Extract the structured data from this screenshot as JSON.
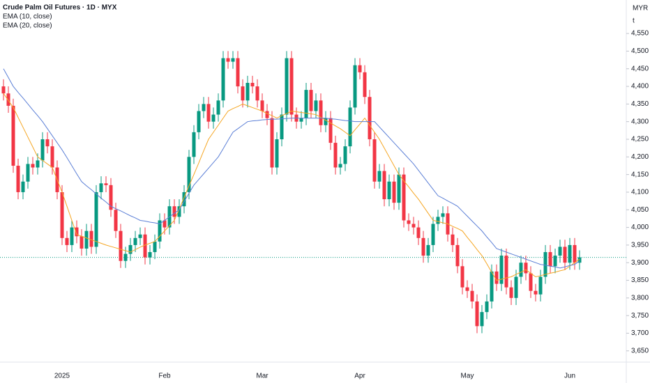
{
  "chart_data": {
    "type": "candlestick",
    "title": "Crude Palm Oil Futures · 1D · MYX",
    "currency": "MYR",
    "unit": "t",
    "up_color": "#089981",
    "down_color": "#f23645",
    "categories": [
      null,
      null,
      null,
      null,
      null,
      null,
      null,
      null,
      null,
      null,
      null,
      null,
      "2025",
      null,
      null,
      null,
      null,
      null,
      null,
      null,
      null,
      null,
      null,
      null,
      null,
      null,
      null,
      null,
      null,
      null,
      null,
      null,
      null,
      "Feb",
      null,
      null,
      null,
      null,
      null,
      null,
      null,
      null,
      null,
      null,
      null,
      null,
      null,
      null,
      null,
      null,
      null,
      null,
      null,
      "Mar",
      null,
      null,
      null,
      null,
      null,
      null,
      null,
      null,
      null,
      null,
      null,
      null,
      null,
      null,
      null,
      null,
      null,
      null,
      null,
      "Apr",
      null,
      null,
      null,
      null,
      null,
      null,
      null,
      null,
      null,
      null,
      null,
      null,
      null,
      null,
      null,
      null,
      null,
      null,
      null,
      null,
      null,
      "May",
      null,
      null,
      null,
      null,
      null,
      null,
      null,
      null,
      null,
      null,
      null,
      null,
      null,
      null,
      null,
      null,
      null,
      null,
      null,
      null,
      "Jun",
      null,
      null
    ],
    "open": [
      4400,
      4380,
      4345,
      4175,
      4100,
      4130,
      4180,
      4170,
      4190,
      4250,
      4230,
      4170,
      4100,
      3970,
      3950,
      4000,
      3975,
      3940,
      3990,
      3945,
      4100,
      4125,
      4120,
      4050,
      3990,
      3905,
      3925,
      3950,
      3970,
      3980,
      3915,
      3930,
      3960,
      4020,
      4000,
      4060,
      4030,
      4060,
      4100,
      4200,
      4270,
      4330,
      4350,
      4300,
      4320,
      4360,
      4480,
      4470,
      4480,
      4400,
      4360,
      4410,
      4400,
      4360,
      4330,
      4310,
      4170,
      4250,
      4320,
      4480,
      4320,
      4300,
      4310,
      4390,
      4330,
      4360,
      4290,
      4310,
      4240,
      4170,
      4180,
      4230,
      4340,
      4460,
      4440,
      4370,
      4250,
      4130,
      4160,
      4080,
      4130,
      4070,
      4150,
      4020,
      4010,
      4000,
      3970,
      3920,
      3950,
      4010,
      4030,
      4040,
      3980,
      3950,
      3890,
      3830,
      3820,
      3790,
      3720,
      3760,
      3790,
      3875,
      3840,
      3920,
      3830,
      3800,
      3860,
      3900,
      3870,
      3820,
      3810,
      3860,
      3930,
      3890,
      3920,
      3945,
      3900,
      3950,
      3900
    ],
    "high": [
      4420,
      4400,
      4365,
      4195,
      4150,
      4200,
      4200,
      4210,
      4270,
      4270,
      4250,
      4190,
      4120,
      3990,
      4020,
      4020,
      3995,
      4010,
      4010,
      4120,
      4145,
      4145,
      4140,
      4070,
      4010,
      3945,
      3970,
      3990,
      4000,
      4000,
      3950,
      3980,
      4040,
      4040,
      4080,
      4080,
      4080,
      4120,
      4220,
      4290,
      4350,
      4370,
      4370,
      4340,
      4380,
      4500,
      4500,
      4500,
      4500,
      4420,
      4430,
      4430,
      4420,
      4380,
      4350,
      4330,
      4270,
      4340,
      4500,
      4500,
      4340,
      4330,
      4410,
      4410,
      4380,
      4380,
      4330,
      4330,
      4260,
      4200,
      4250,
      4360,
      4480,
      4480,
      4460,
      4390,
      4270,
      4180,
      4180,
      4150,
      4150,
      4170,
      4170,
      4040,
      4030,
      4020,
      3990,
      3970,
      4030,
      4050,
      4060,
      4060,
      4000,
      3970,
      3910,
      3850,
      3840,
      3810,
      3780,
      3810,
      3895,
      3895,
      3940,
      3940,
      3850,
      3880,
      3920,
      3920,
      3890,
      3840,
      3880,
      3950,
      3950,
      3940,
      3965,
      3965,
      3970,
      3970,
      3935
    ],
    "low": [
      4360,
      4325,
      4155,
      4080,
      4080,
      4110,
      4150,
      4150,
      4170,
      4210,
      4150,
      4080,
      3950,
      3930,
      3930,
      3955,
      3920,
      3920,
      3925,
      3925,
      4080,
      4100,
      4030,
      3970,
      3885,
      3885,
      3905,
      3930,
      3950,
      3895,
      3895,
      3910,
      3940,
      3980,
      3980,
      4010,
      4010,
      4040,
      4080,
      4180,
      4250,
      4310,
      4280,
      4280,
      4300,
      4340,
      4450,
      4450,
      4380,
      4340,
      4340,
      4380,
      4340,
      4310,
      4290,
      4150,
      4150,
      4230,
      4300,
      4300,
      4280,
      4280,
      4290,
      4310,
      4310,
      4270,
      4270,
      4220,
      4150,
      4150,
      4160,
      4210,
      4320,
      4420,
      4350,
      4230,
      4110,
      4110,
      4060,
      4060,
      4050,
      4050,
      4000,
      3990,
      3980,
      3950,
      3900,
      3900,
      3930,
      3990,
      4010,
      3960,
      3930,
      3870,
      3810,
      3800,
      3770,
      3700,
      3700,
      3740,
      3770,
      3820,
      3820,
      3810,
      3780,
      3780,
      3840,
      3850,
      3800,
      3790,
      3790,
      3840,
      3870,
      3870,
      3900,
      3880,
      3880,
      3880,
      3880
    ],
    "close": [
      4380,
      4345,
      4175,
      4100,
      4130,
      4180,
      4170,
      4190,
      4250,
      4230,
      4170,
      4100,
      3970,
      3950,
      4000,
      3975,
      3940,
      3990,
      3945,
      4100,
      4125,
      4120,
      4050,
      3990,
      3905,
      3925,
      3950,
      3970,
      3980,
      3915,
      3930,
      3960,
      4020,
      4000,
      4060,
      4030,
      4060,
      4100,
      4200,
      4270,
      4330,
      4350,
      4300,
      4320,
      4360,
      4480,
      4470,
      4480,
      4400,
      4360,
      4410,
      4400,
      4360,
      4330,
      4310,
      4170,
      4250,
      4320,
      4480,
      4320,
      4300,
      4310,
      4390,
      4330,
      4360,
      4290,
      4310,
      4240,
      4170,
      4180,
      4230,
      4340,
      4460,
      4440,
      4370,
      4250,
      4130,
      4160,
      4080,
      4130,
      4070,
      4150,
      4020,
      4010,
      4000,
      3970,
      3920,
      3950,
      4010,
      4030,
      4040,
      3980,
      3950,
      3890,
      3830,
      3820,
      3790,
      3720,
      3760,
      3790,
      3875,
      3840,
      3920,
      3830,
      3800,
      3860,
      3900,
      3870,
      3820,
      3810,
      3860,
      3930,
      3890,
      3920,
      3945,
      3900,
      3950,
      3900,
      3915
    ],
    "series": [
      {
        "name": "EMA (10, close)",
        "color": "#f5a623",
        "values": [
          4380,
          4360,
          4340,
          4312,
          4284,
          4256,
          4228,
          4200,
          4190,
          4180,
          4170,
          4135,
          4100,
          4060,
          4020,
          3980,
          3975,
          3970,
          3965,
          3960,
          3955,
          3950,
          3946,
          3942,
          3938,
          3934,
          3930,
          3937,
          3944,
          3950,
          3955,
          3960,
          3975,
          3990,
          4005,
          4020,
          4052,
          4085,
          4118,
          4150,
          4183,
          4217,
          4250,
          4270,
          4290,
          4310,
          4330,
          4337,
          4343,
          4350,
          4345,
          4340,
          4335,
          4330,
          4323,
          4317,
          4310,
          4317,
          4323,
          4330,
          4328,
          4326,
          4324,
          4322,
          4320,
          4312,
          4304,
          4296,
          4288,
          4280,
          4270,
          4260,
          4277,
          4293,
          4310,
          4290,
          4270,
          4250,
          4225,
          4200,
          4175,
          4150,
          4132,
          4115,
          4097,
          4080,
          4060,
          4040,
          4020,
          4017,
          4013,
          4010,
          4003,
          3997,
          3990,
          3972,
          3955,
          3937,
          3920,
          3897,
          3873,
          3850,
          3853,
          3857,
          3860,
          3867,
          3873,
          3880,
          3870,
          3860,
          3863,
          3867,
          3870,
          3873,
          3877,
          3880,
          3890,
          3900,
          3910
        ]
      },
      {
        "name": "EMA (20, close)",
        "color": "#5b7fd6",
        "values": [
          4450,
          4425,
          4400,
          4383,
          4367,
          4350,
          4333,
          4317,
          4300,
          4280,
          4260,
          4240,
          4220,
          4198,
          4175,
          4152,
          4130,
          4118,
          4107,
          4095,
          4083,
          4072,
          4060,
          4053,
          4047,
          4040,
          4033,
          4027,
          4020,
          4018,
          4015,
          4013,
          4010,
          4020,
          4030,
          4040,
          4050,
          4073,
          4097,
          4120,
          4136,
          4152,
          4168,
          4184,
          4200,
          4223,
          4247,
          4270,
          4280,
          4290,
          4300,
          4302,
          4303,
          4305,
          4306,
          4307,
          4307,
          4308,
          4309,
          4310,
          4310,
          4310,
          4310,
          4310,
          4310,
          4310,
          4310,
          4308,
          4307,
          4305,
          4303,
          4302,
          4300,
          4300,
          4300,
          4300,
          4300,
          4285,
          4270,
          4255,
          4240,
          4225,
          4210,
          4195,
          4180,
          4162,
          4144,
          4126,
          4108,
          4090,
          4083,
          4075,
          4068,
          4060,
          4046,
          4032,
          4018,
          4004,
          3990,
          3973,
          3957,
          3940,
          3935,
          3930,
          3925,
          3920,
          3915,
          3910,
          3905,
          3900,
          3895,
          3893,
          3890,
          3888,
          3885,
          3888,
          3892,
          3895,
          3905
        ]
      }
    ],
    "ylim": [
      3618,
      4645
    ],
    "yticks": [
      {
        "value": 3650,
        "label": "3,650"
      },
      {
        "value": 3700,
        "label": "3,700"
      },
      {
        "value": 3750,
        "label": "3,750"
      },
      {
        "value": 3800,
        "label": "3,800"
      },
      {
        "value": 3850,
        "label": "3,850"
      },
      {
        "value": 3900,
        "label": "3,900"
      },
      {
        "value": 3950,
        "label": "3,950"
      },
      {
        "value": 4000,
        "label": "4,000"
      },
      {
        "value": 4050,
        "label": "4,050"
      },
      {
        "value": 4100,
        "label": "4,100"
      },
      {
        "value": 4150,
        "label": "4,150"
      },
      {
        "value": 4200,
        "label": "4,200"
      },
      {
        "value": 4250,
        "label": "4,250"
      },
      {
        "value": 4300,
        "label": "4,300"
      },
      {
        "value": 4350,
        "label": "4,350"
      },
      {
        "value": 4400,
        "label": "4,400"
      },
      {
        "value": 4450,
        "label": "4,450"
      },
      {
        "value": 4500,
        "label": "4,500"
      },
      {
        "value": 4550,
        "label": "4,550"
      }
    ]
  }
}
